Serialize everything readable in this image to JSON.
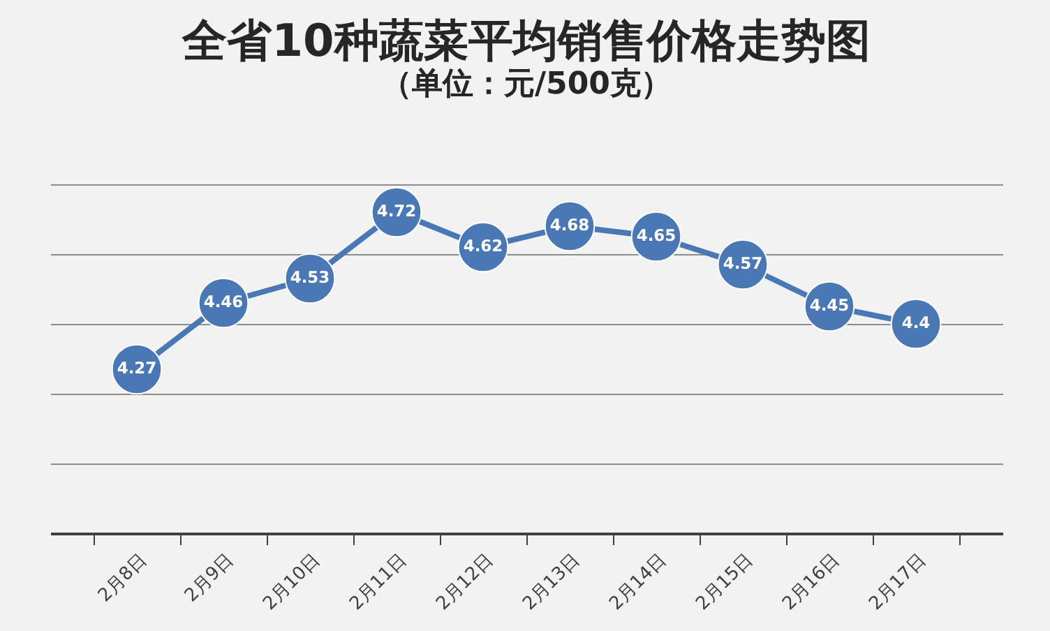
{
  "chart_data": {
    "type": "line",
    "title": "全省10种蔬菜平均销售价格走势图",
    "subtitle": "（单位：元/500克）",
    "categories": [
      "2月8日",
      "2月9日",
      "2月10日",
      "2月11日",
      "2月12日",
      "2月13日",
      "2月14日",
      "2月15日",
      "2月16日",
      "2月17日"
    ],
    "series": [
      {
        "color": "#4a78b5",
        "values": [
          4.27,
          4.46,
          4.53,
          4.72,
          4.62,
          4.68,
          4.65,
          4.57,
          4.45,
          4.4
        ]
      }
    ],
    "ylim": [
      3.8,
      4.8
    ],
    "yticks": [
      {
        "value": 3.8,
        "label": null
      },
      {
        "value": 4.0,
        "label": null
      },
      {
        "value": 4.2,
        "label": null
      },
      {
        "value": 4.4,
        "label": null
      },
      {
        "value": 4.6,
        "label": null
      },
      {
        "value": 4.8,
        "label": null
      }
    ],
    "tick_labels": "x",
    "grid": "y",
    "data_labels": true,
    "marker": "circle",
    "line_style": "solid",
    "legend": false
  }
}
